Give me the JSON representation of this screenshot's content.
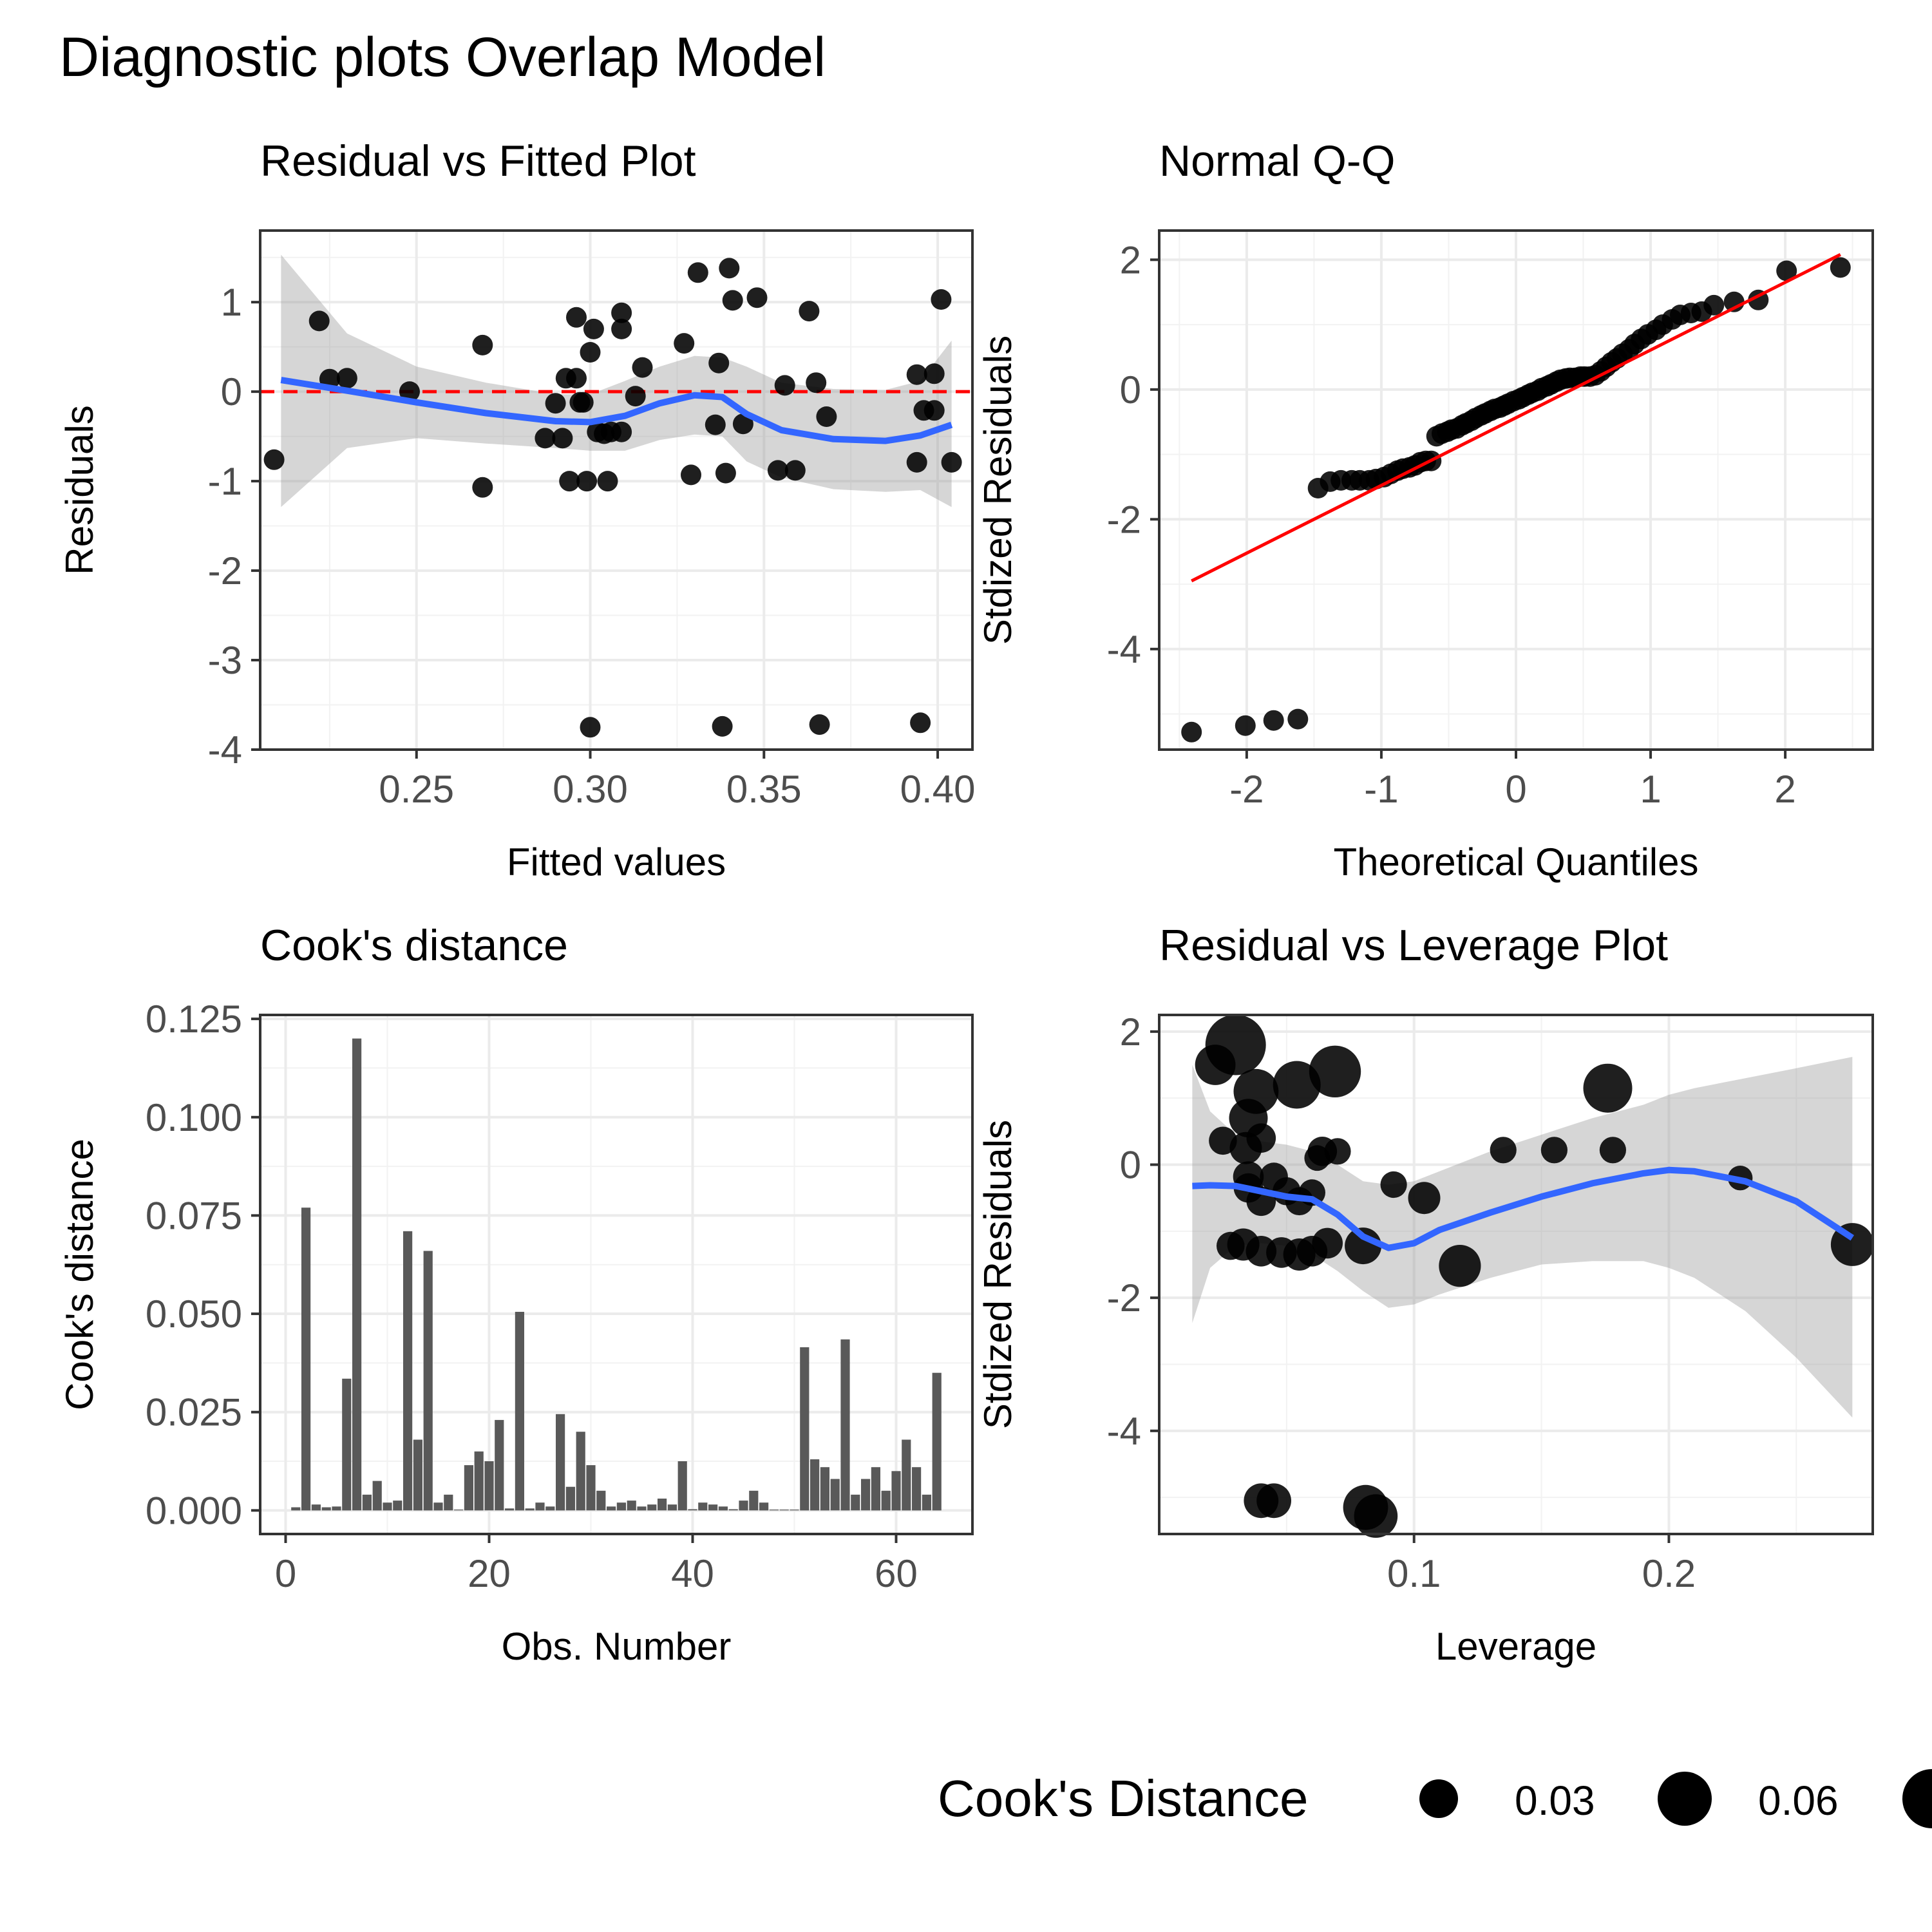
{
  "title": "Diagnostic plots Overlap Model",
  "legend": {
    "title": "Cook's Distance",
    "labels": [
      "0.03",
      "0.06"
    ]
  },
  "chart_data": [
    {
      "type": "scatter",
      "title": "Residual vs Fitted Plot",
      "xlabel": "Fitted values",
      "ylabel": "Residuals",
      "xlim": [
        0.205,
        0.41
      ],
      "ylim": [
        -4.0,
        1.8
      ],
      "xticks": [
        0.25,
        0.3,
        0.35,
        0.4
      ],
      "xtick_labels": [
        "0.25",
        "0.30",
        "0.35",
        "0.40"
      ],
      "yticks": [
        -4,
        -3,
        -2,
        -1,
        0,
        1
      ],
      "ytick_labels": [
        "-4",
        "-3",
        "-2",
        "-1",
        "0",
        "1"
      ],
      "grid": true,
      "reference_line": {
        "y": 0,
        "style": "dashed",
        "color": "#ff0000"
      },
      "points": [
        [
          0.209,
          -0.76
        ],
        [
          0.222,
          0.79
        ],
        [
          0.225,
          0.14
        ],
        [
          0.23,
          0.15
        ],
        [
          0.248,
          0.0
        ],
        [
          0.269,
          0.52
        ],
        [
          0.269,
          -1.07
        ],
        [
          0.287,
          -0.52
        ],
        [
          0.29,
          -0.13
        ],
        [
          0.292,
          -0.52
        ],
        [
          0.293,
          0.15
        ],
        [
          0.294,
          -1.0
        ],
        [
          0.296,
          0.15
        ],
        [
          0.296,
          0.83
        ],
        [
          0.297,
          -0.12
        ],
        [
          0.298,
          -0.12
        ],
        [
          0.299,
          -1.0
        ],
        [
          0.3,
          0.44
        ],
        [
          0.3,
          -3.75
        ],
        [
          0.301,
          0.7
        ],
        [
          0.302,
          -0.45
        ],
        [
          0.304,
          -0.47
        ],
        [
          0.305,
          -1.0
        ],
        [
          0.306,
          -0.45
        ],
        [
          0.309,
          0.88
        ],
        [
          0.309,
          0.7
        ],
        [
          0.309,
          -0.45
        ],
        [
          0.313,
          -0.05
        ],
        [
          0.315,
          0.27
        ],
        [
          0.327,
          0.54
        ],
        [
          0.329,
          -0.93
        ],
        [
          0.331,
          1.33
        ],
        [
          0.336,
          -0.37
        ],
        [
          0.337,
          0.32
        ],
        [
          0.338,
          -3.74
        ],
        [
          0.339,
          -0.91
        ],
        [
          0.34,
          1.38
        ],
        [
          0.341,
          1.02
        ],
        [
          0.344,
          -0.36
        ],
        [
          0.348,
          1.05
        ],
        [
          0.354,
          -0.88
        ],
        [
          0.356,
          0.07
        ],
        [
          0.359,
          -0.88
        ],
        [
          0.363,
          0.9
        ],
        [
          0.365,
          0.1
        ],
        [
          0.366,
          -3.72
        ],
        [
          0.368,
          -0.28
        ],
        [
          0.394,
          0.19
        ],
        [
          0.394,
          -0.79
        ],
        [
          0.395,
          -3.7
        ],
        [
          0.396,
          -0.21
        ],
        [
          0.399,
          0.2
        ],
        [
          0.399,
          -0.21
        ],
        [
          0.401,
          1.03
        ],
        [
          0.404,
          -0.79
        ]
      ],
      "smooth": {
        "color": "#3366ff",
        "x": [
          0.211,
          0.23,
          0.25,
          0.27,
          0.29,
          0.3,
          0.31,
          0.32,
          0.33,
          0.338,
          0.345,
          0.355,
          0.37,
          0.385,
          0.395,
          0.404
        ],
        "y": [
          0.13,
          0.01,
          -0.12,
          -0.24,
          -0.33,
          -0.34,
          -0.27,
          -0.13,
          -0.04,
          -0.06,
          -0.25,
          -0.43,
          -0.53,
          -0.55,
          -0.49,
          -0.37
        ],
        "ci_upper": [
          1.53,
          0.65,
          0.28,
          0.1,
          -0.03,
          -0.03,
          0.12,
          0.28,
          0.4,
          0.38,
          0.28,
          0.1,
          0.03,
          0.02,
          0.12,
          0.57
        ],
        "ci_lower": [
          -1.29,
          -0.63,
          -0.52,
          -0.58,
          -0.63,
          -0.66,
          -0.66,
          -0.54,
          -0.48,
          -0.5,
          -0.78,
          -0.96,
          -1.09,
          -1.12,
          -1.1,
          -1.29
        ]
      }
    },
    {
      "type": "scatter",
      "title": "Normal Q-Q",
      "xlabel": "Theoretical Quantiles",
      "ylabel": "Stdized Residuals",
      "xlim": [
        -2.65,
        2.65
      ],
      "ylim": [
        -5.55,
        2.45
      ],
      "xticks": [
        -2,
        -1,
        0,
        1,
        2
      ],
      "xtick_labels": [
        "-2",
        "-1",
        "0",
        "1",
        "2"
      ],
      "yticks": [
        -4,
        -2,
        0,
        2
      ],
      "ytick_labels": [
        "-4",
        "-2",
        "0",
        "2"
      ],
      "grid": true,
      "qq_line": {
        "x": [
          -2.41,
          2.41
        ],
        "y": [
          -2.95,
          2.08
        ],
        "color": "#ff0000"
      },
      "points": [
        [
          -2.41,
          -5.28
        ],
        [
          -2.01,
          -5.18
        ],
        [
          -1.8,
          -5.1
        ],
        [
          -1.62,
          -5.08
        ],
        [
          -1.47,
          -1.52
        ],
        [
          -1.38,
          -1.42
        ],
        [
          -1.3,
          -1.4
        ],
        [
          -1.22,
          -1.4
        ],
        [
          -1.16,
          -1.4
        ],
        [
          -1.09,
          -1.4
        ],
        [
          -1.04,
          -1.38
        ],
        [
          -0.98,
          -1.35
        ],
        [
          -0.93,
          -1.3
        ],
        [
          -0.88,
          -1.25
        ],
        [
          -0.84,
          -1.22
        ],
        [
          -0.79,
          -1.2
        ],
        [
          -0.75,
          -1.17
        ],
        [
          -0.71,
          -1.12
        ],
        [
          -0.67,
          -1.1
        ],
        [
          -0.63,
          -1.1
        ],
        [
          -0.59,
          -0.72
        ],
        [
          -0.55,
          -0.68
        ],
        [
          -0.51,
          -0.65
        ],
        [
          -0.48,
          -0.62
        ],
        [
          -0.44,
          -0.6
        ],
        [
          -0.4,
          -0.55
        ],
        [
          -0.37,
          -0.52
        ],
        [
          -0.33,
          -0.48
        ],
        [
          -0.3,
          -0.44
        ],
        [
          -0.26,
          -0.4
        ],
        [
          -0.23,
          -0.37
        ],
        [
          -0.19,
          -0.33
        ],
        [
          -0.16,
          -0.3
        ],
        [
          -0.12,
          -0.28
        ],
        [
          -0.09,
          -0.25
        ],
        [
          -0.06,
          -0.22
        ],
        [
          -0.02,
          -0.18
        ],
        [
          0.02,
          -0.15
        ],
        [
          0.05,
          -0.12
        ],
        [
          0.09,
          -0.08
        ],
        [
          0.12,
          -0.05
        ],
        [
          0.16,
          -0.02
        ],
        [
          0.19,
          0.02
        ],
        [
          0.23,
          0.05
        ],
        [
          0.26,
          0.08
        ],
        [
          0.3,
          0.12
        ],
        [
          0.33,
          0.15
        ],
        [
          0.37,
          0.17
        ],
        [
          0.4,
          0.18
        ],
        [
          0.44,
          0.18
        ],
        [
          0.48,
          0.2
        ],
        [
          0.51,
          0.2
        ],
        [
          0.55,
          0.2
        ],
        [
          0.59,
          0.22
        ],
        [
          0.63,
          0.28
        ],
        [
          0.67,
          0.35
        ],
        [
          0.71,
          0.42
        ],
        [
          0.75,
          0.48
        ],
        [
          0.79,
          0.55
        ],
        [
          0.84,
          0.62
        ],
        [
          0.88,
          0.7
        ],
        [
          0.93,
          0.78
        ],
        [
          0.98,
          0.85
        ],
        [
          1.04,
          0.92
        ],
        [
          1.09,
          1.0
        ],
        [
          1.16,
          1.08
        ],
        [
          1.22,
          1.15
        ],
        [
          1.3,
          1.18
        ],
        [
          1.38,
          1.2
        ],
        [
          1.47,
          1.3
        ],
        [
          1.62,
          1.35
        ],
        [
          1.8,
          1.38
        ],
        [
          2.01,
          1.83
        ],
        [
          2.41,
          1.88
        ]
      ]
    },
    {
      "type": "bar",
      "title": "Cook's distance",
      "xlabel": "Obs. Number",
      "ylabel": "Cook's distance",
      "xlim": [
        -2.5,
        67.5
      ],
      "ylim": [
        -0.006,
        0.126
      ],
      "xticks": [
        0,
        20,
        40,
        60
      ],
      "xtick_labels": [
        "0",
        "20",
        "40",
        "60"
      ],
      "yticks": [
        0,
        0.025,
        0.05,
        0.075,
        0.1,
        0.125
      ],
      "ytick_labels": [
        "0.000",
        "0.025",
        "0.050",
        "0.075",
        "0.100",
        "0.125"
      ],
      "grid": true,
      "categories": [
        1,
        2,
        3,
        4,
        5,
        6,
        7,
        8,
        9,
        10,
        11,
        12,
        13,
        14,
        15,
        16,
        17,
        18,
        19,
        20,
        21,
        22,
        23,
        24,
        25,
        26,
        27,
        28,
        29,
        30,
        31,
        32,
        33,
        34,
        35,
        36,
        37,
        38,
        39,
        40,
        41,
        42,
        43,
        44,
        45,
        46,
        47,
        48,
        49,
        50,
        51,
        52,
        53,
        54,
        55,
        56,
        57,
        58,
        59,
        60,
        61,
        62,
        63,
        64
      ],
      "values": [
        0.0008,
        0.077,
        0.0015,
        0.0008,
        0.001,
        0.0335,
        0.12,
        0.004,
        0.0075,
        0.002,
        0.0025,
        0.071,
        0.018,
        0.066,
        0.002,
        0.004,
        0.0002,
        0.0115,
        0.015,
        0.0125,
        0.023,
        0.0005,
        0.0505,
        0.0005,
        0.002,
        0.001,
        0.0245,
        0.006,
        0.02,
        0.0115,
        0.005,
        0.001,
        0.002,
        0.0025,
        0.001,
        0.0015,
        0.003,
        0.0015,
        0.0125,
        0.0003,
        0.002,
        0.0015,
        0.001,
        0.0003,
        0.0025,
        0.005,
        0.002,
        0.0002,
        0.0002,
        0.0002,
        0.0415,
        0.013,
        0.011,
        0.008,
        0.0435,
        0.004,
        0.008,
        0.011,
        0.005,
        0.01,
        0.018,
        0.011,
        0.004,
        0.035
      ]
    },
    {
      "type": "scatter",
      "title": "Residual vs Leverage Plot",
      "xlabel": "Leverage",
      "ylabel": "Stdized Residuals",
      "xlim": [
        0.0,
        0.28
      ],
      "ylim": [
        -5.55,
        2.25
      ],
      "xticks": [
        0.1,
        0.2
      ],
      "xtick_labels": [
        "0.1",
        "0.2"
      ],
      "yticks": [
        -4,
        -2,
        0,
        2
      ],
      "ytick_labels": [
        "-4",
        "-2",
        "0",
        "2"
      ],
      "grid": true,
      "points": [
        [
          0.025,
          0.36,
          0.008
        ],
        [
          0.03,
          1.8,
          0.12
        ],
        [
          0.022,
          1.5,
          0.035
        ],
        [
          0.038,
          1.1,
          0.05
        ],
        [
          0.035,
          0.7,
          0.03
        ],
        [
          0.04,
          0.4,
          0.01
        ],
        [
          0.054,
          1.2,
          0.06
        ],
        [
          0.069,
          1.4,
          0.077
        ],
        [
          0.034,
          0.25,
          0.015
        ],
        [
          0.064,
          0.2,
          0.01
        ],
        [
          0.062,
          0.1,
          0.005
        ],
        [
          0.035,
          -0.18,
          0.012
        ],
        [
          0.045,
          -0.18,
          0.008
        ],
        [
          0.035,
          -0.35,
          0.01
        ],
        [
          0.05,
          -0.4,
          0.008
        ],
        [
          0.04,
          -0.55,
          0.01
        ],
        [
          0.055,
          -0.55,
          0.008
        ],
        [
          0.06,
          -0.42,
          0.006
        ],
        [
          0.028,
          -1.22,
          0.008
        ],
        [
          0.033,
          -1.2,
          0.015
        ],
        [
          0.04,
          -1.3,
          0.012
        ],
        [
          0.048,
          -1.32,
          0.012
        ],
        [
          0.055,
          -1.35,
          0.015
        ],
        [
          0.06,
          -1.3,
          0.012
        ],
        [
          0.066,
          -1.18,
          0.012
        ],
        [
          0.08,
          -1.22,
          0.025
        ],
        [
          0.092,
          -0.3,
          0.006
        ],
        [
          0.104,
          -0.5,
          0.015
        ],
        [
          0.118,
          -1.52,
          0.04
        ],
        [
          0.135,
          0.22,
          0.006
        ],
        [
          0.155,
          0.22,
          0.006
        ],
        [
          0.176,
          1.15,
          0.065
        ],
        [
          0.178,
          0.22,
          0.006
        ],
        [
          0.228,
          -0.2,
          0.004
        ],
        [
          0.272,
          -1.2,
          0.043
        ],
        [
          0.04,
          -5.05,
          0.02
        ],
        [
          0.045,
          -5.05,
          0.02
        ],
        [
          0.081,
          -5.15,
          0.05
        ],
        [
          0.085,
          -5.28,
          0.045
        ],
        [
          0.07,
          0.2,
          0.006
        ]
      ],
      "smooth": {
        "color": "#3366ff",
        "x": [
          0.013,
          0.02,
          0.03,
          0.04,
          0.05,
          0.06,
          0.07,
          0.08,
          0.09,
          0.1,
          0.11,
          0.13,
          0.15,
          0.17,
          0.19,
          0.2,
          0.21,
          0.23,
          0.25,
          0.272
        ],
        "y": [
          -0.32,
          -0.31,
          -0.32,
          -0.4,
          -0.48,
          -0.52,
          -0.75,
          -1.08,
          -1.25,
          -1.18,
          -0.98,
          -0.72,
          -0.48,
          -0.28,
          -0.13,
          -0.08,
          -0.1,
          -0.25,
          -0.55,
          -1.1
        ],
        "ci_upper": [
          1.5,
          0.8,
          0.45,
          0.35,
          0.3,
          0.2,
          0.0,
          -0.25,
          -0.3,
          -0.25,
          -0.1,
          0.2,
          0.45,
          0.7,
          0.9,
          1.05,
          1.15,
          1.3,
          1.45,
          1.62
        ],
        "ci_lower": [
          -2.38,
          -1.55,
          -1.22,
          -1.18,
          -1.22,
          -1.35,
          -1.6,
          -1.9,
          -2.15,
          -2.1,
          -1.95,
          -1.7,
          -1.5,
          -1.45,
          -1.45,
          -1.55,
          -1.7,
          -2.2,
          -2.9,
          -3.8
        ]
      }
    }
  ]
}
